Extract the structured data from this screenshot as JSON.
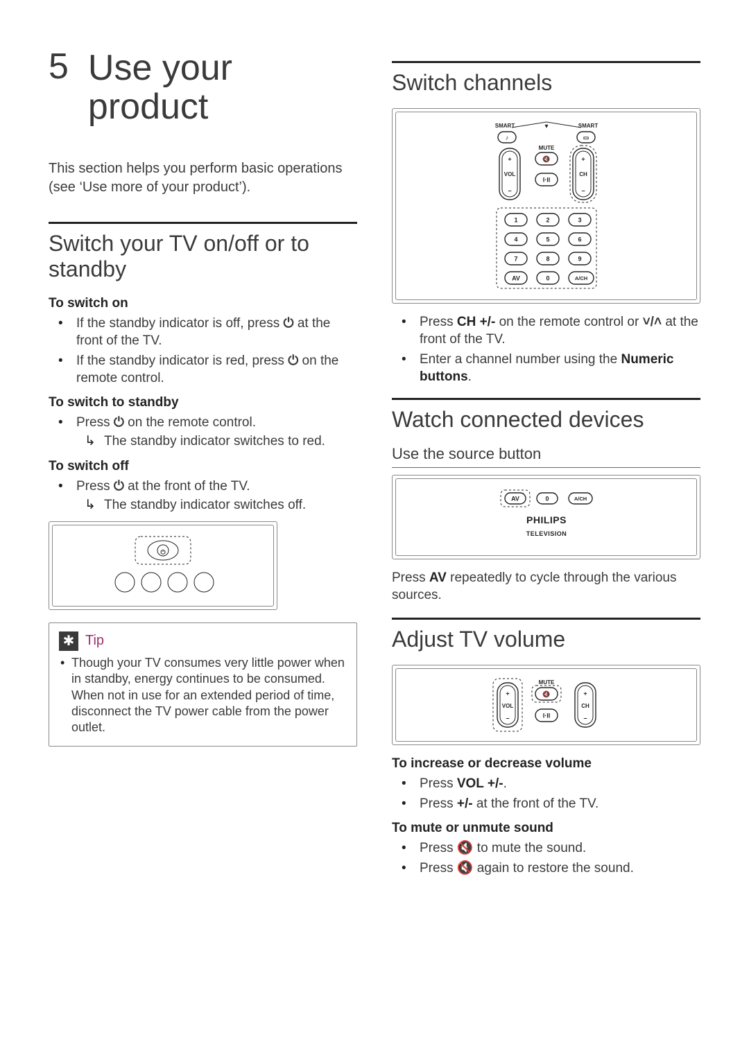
{
  "chapter": {
    "num": "5",
    "title": "Use your product"
  },
  "intro": "This section helps you perform basic operations (see ‘Use more of your product’).",
  "left": {
    "switch_heading": "Switch your TV on/off or to standby",
    "to_switch_on_label": "To switch on",
    "to_switch_on_items": [
      {
        "pre": "If the standby indicator is off, press ",
        "glyph": "⏻",
        "post": " at the front of the TV."
      },
      {
        "pre": "If the standby indicator is red, press ",
        "glyph": "⏻",
        "post": " on the remote control."
      }
    ],
    "to_standby_label": "To switch to standby",
    "to_standby_item_pre": "Press ",
    "to_standby_item_glyph": "⏻",
    "to_standby_item_post": " on the remote control.",
    "to_standby_arrow": "The standby indicator switches to red.",
    "to_switch_off_label": "To switch off",
    "to_switch_off_item_pre": "Press ",
    "to_switch_off_item_glyph": "⏻",
    "to_switch_off_item_post": " at the front of the TV.",
    "to_switch_off_arrow": "The standby indicator switches off.",
    "tip_label": "Tip",
    "tip_text": "Though your TV consumes very little power when in standby, energy continues to be consumed. When not in use for an extended period of time, disconnect the TV power cable from the power outlet."
  },
  "right": {
    "switch_ch_heading": "Switch channels",
    "ch_item1_pre": "Press ",
    "ch_item1_bold": "CH +/-",
    "ch_item1_mid": " on the remote control or ",
    "ch_item1_glyph": "˅/˄",
    "ch_item1_post": " at the front of the TV.",
    "ch_item2_pre": "Enter a channel number using the ",
    "ch_item2_bold": "Numeric buttons",
    "ch_item2_post": ".",
    "watch_heading": "Watch connected devices",
    "source_sub": "Use the source button",
    "watch_text_pre": "Press ",
    "watch_text_bold": "AV",
    "watch_text_post": " repeatedly to cycle through the various sources.",
    "volume_heading": "Adjust TV volume",
    "vol_sub1": "To increase or decrease volume",
    "vol_item1_pre": "Press ",
    "vol_item1_bold": "VOL +/-",
    "vol_item1_post": ".",
    "vol_item2_pre": "Press ",
    "vol_item2_bold": "+/-",
    "vol_item2_post": " at the front of the TV.",
    "vol_sub2": "To mute or unmute sound",
    "mute_item1_pre": "Press ",
    "mute_item1_glyph": "🔇",
    "mute_item1_post": " to mute the sound.",
    "mute_item2_pre": "Press ",
    "mute_item2_glyph": "🔇",
    "mute_item2_post": " again to restore the sound."
  },
  "figures": {
    "remote_channels": {
      "smart_left": "SMART",
      "smart_right": "SMART",
      "mute": "MUTE",
      "vol": "VOL",
      "ch": "CH",
      "keys": [
        "1",
        "2",
        "3",
        "4",
        "5",
        "6",
        "7",
        "8",
        "9",
        "AV",
        "0",
        "A/CH"
      ],
      "highlight_color": "#3a3a3a",
      "frame_color": "#888888"
    },
    "source_panel": {
      "keys": [
        "AV",
        "0",
        "A/CH"
      ],
      "brand": "PHILIPS",
      "sub": "TELEVISION"
    },
    "volume_panel": {
      "mute": "MUTE",
      "vol": "VOL",
      "ch": "CH"
    },
    "front_panel": {
      "power_glyph": "⏻"
    },
    "colors": {
      "text": "#3a3a3a",
      "rule": "#222222",
      "accent": "#9c2f6b",
      "frame": "#888888",
      "bg": "#ffffff"
    }
  }
}
